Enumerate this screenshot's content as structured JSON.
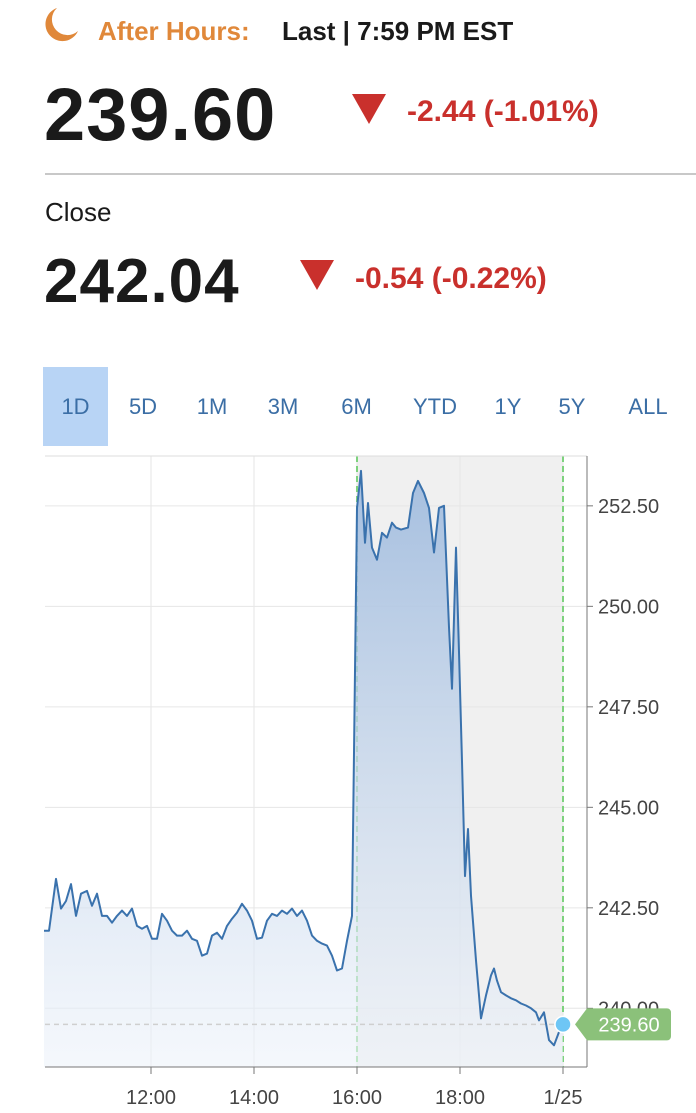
{
  "header": {
    "session": "After Hours:",
    "status": "Last | 7:59 PM EST",
    "price": "239.60",
    "change": "-2.44 (-1.01%)",
    "close_label": "Close",
    "close_price": "242.04",
    "close_change": "-0.54 (-0.22%)"
  },
  "tabs": {
    "items": [
      "1D",
      "5D",
      "1M",
      "3M",
      "6M",
      "YTD",
      "1Y",
      "5Y",
      "ALL"
    ],
    "active": 0
  },
  "chart_data": {
    "type": "area",
    "color": "#3a72ad",
    "x": [
      9.922,
      10.019,
      10.155,
      10.252,
      10.35,
      10.447,
      10.544,
      10.641,
      10.757,
      10.854,
      10.951,
      11.049,
      11.146,
      11.243,
      11.34,
      11.437,
      11.534,
      11.631,
      11.728,
      11.825,
      11.922,
      12.019,
      12.117,
      12.214,
      12.311,
      12.408,
      12.505,
      12.602,
      12.699,
      12.796,
      12.893,
      12.99,
      13.087,
      13.184,
      13.282,
      13.379,
      13.476,
      13.573,
      13.67,
      13.767,
      13.864,
      13.961,
      14.058,
      14.155,
      14.252,
      14.35,
      14.447,
      14.544,
      14.641,
      14.738,
      14.835,
      14.932,
      15.029,
      15.126,
      15.223,
      15.32,
      15.417,
      15.515,
      15.612,
      15.709,
      15.806,
      15.903,
      16.0,
      16.078,
      16.155,
      16.214,
      16.291,
      16.388,
      16.485,
      16.583,
      16.68,
      16.757,
      16.854,
      16.99,
      17.087,
      17.184,
      17.301,
      17.398,
      17.495,
      17.592,
      17.689,
      17.786,
      17.845,
      17.922,
      17.981,
      18.039,
      18.097,
      18.155,
      18.214,
      18.311,
      18.408,
      18.505,
      18.602,
      18.66,
      18.718,
      18.796,
      18.893,
      18.99,
      19.087,
      19.184,
      19.282,
      19.379,
      19.476,
      19.534,
      19.631,
      19.728,
      19.825,
      19.922,
      20.0
    ],
    "values": [
      241.93,
      241.93,
      243.22,
      242.48,
      242.67,
      243.09,
      242.3,
      242.85,
      242.92,
      242.55,
      242.85,
      242.3,
      242.3,
      242.13,
      242.3,
      242.43,
      242.3,
      242.48,
      242.05,
      241.98,
      242.05,
      241.73,
      241.73,
      242.35,
      242.18,
      241.93,
      241.81,
      241.81,
      241.93,
      241.73,
      241.68,
      241.31,
      241.36,
      241.81,
      241.88,
      241.73,
      242.05,
      242.23,
      242.38,
      242.6,
      242.43,
      242.18,
      241.73,
      241.76,
      242.18,
      242.35,
      242.3,
      242.43,
      242.35,
      242.48,
      242.3,
      242.43,
      242.18,
      241.81,
      241.68,
      241.61,
      241.56,
      241.31,
      240.94,
      240.99,
      241.68,
      242.3,
      252.45,
      253.37,
      251.58,
      252.57,
      251.46,
      251.16,
      251.83,
      251.71,
      252.08,
      251.96,
      251.91,
      251.96,
      252.82,
      253.12,
      252.82,
      252.45,
      251.34,
      252.45,
      252.5,
      249.48,
      247.95,
      251.46,
      248.86,
      246.14,
      243.29,
      244.46,
      242.8,
      241.19,
      239.75,
      240.32,
      240.82,
      240.99,
      240.69,
      240.4,
      240.32,
      240.25,
      240.2,
      240.12,
      240.07,
      240.0,
      239.9,
      239.7,
      239.9,
      239.21,
      239.08,
      239.41,
      239.6
    ],
    "xlim": [
      9.942,
      20.466
    ],
    "xticks": [
      {
        "value": 12,
        "label": "12:00"
      },
      {
        "value": 14,
        "label": "14:00"
      },
      {
        "value": 16,
        "label": "16:00"
      },
      {
        "value": 18,
        "label": "18:00"
      },
      {
        "value": 20,
        "label": "1/25"
      }
    ],
    "ylim": [
      238.54,
      253.74
    ],
    "yticks": [
      {
        "value": 240,
        "label": "240.00"
      },
      {
        "value": 242.5,
        "label": "242.50"
      },
      {
        "value": 245,
        "label": "245.00"
      },
      {
        "value": 247.5,
        "label": "247.50"
      },
      {
        "value": 250,
        "label": "250.00"
      },
      {
        "value": 252.5,
        "label": "252.50"
      }
    ],
    "grid": true,
    "shaded_range": [
      16,
      20
    ],
    "last_value_label": "239.60"
  }
}
